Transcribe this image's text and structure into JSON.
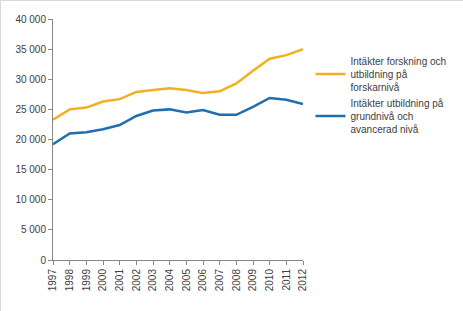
{
  "chart_data": {
    "type": "line",
    "categories": [
      "1997",
      "1998",
      "1999",
      "2000",
      "2001",
      "2002",
      "2003",
      "2004",
      "2005",
      "2006",
      "2007",
      "2008",
      "2009",
      "2010",
      "2011",
      "2012"
    ],
    "series": [
      {
        "name": "Intäkter forskning och utbildning på forskarnivå",
        "color": "#f2b01e",
        "values": [
          23300,
          25000,
          25300,
          26300,
          26700,
          27900,
          28200,
          28500,
          28200,
          27700,
          28000,
          29300,
          31400,
          33400,
          34000,
          35000
        ]
      },
      {
        "name": "Intäkter utbildning på grundnivå och avancerad nivå",
        "color": "#1f6eb0",
        "values": [
          19200,
          21000,
          21200,
          21700,
          22400,
          23900,
          24800,
          25000,
          24500,
          24900,
          24100,
          24100,
          25400,
          26900,
          26600,
          25900
        ]
      }
    ],
    "ylim": [
      0,
      40000
    ],
    "yticks": [
      0,
      {
        "value": 5000,
        "label": "5 000"
      },
      {
        "value": 10000,
        "label": "10 000"
      },
      {
        "value": 15000,
        "label": "15 000"
      },
      {
        "value": 20000,
        "label": "20 000"
      },
      {
        "value": 25000,
        "label": "25 000"
      },
      {
        "value": 30000,
        "label": "30 000"
      },
      {
        "value": 35000,
        "label": "35 000"
      },
      {
        "value": 40000,
        "label": "40 000"
      }
    ],
    "grid": false,
    "legend": "right"
  }
}
